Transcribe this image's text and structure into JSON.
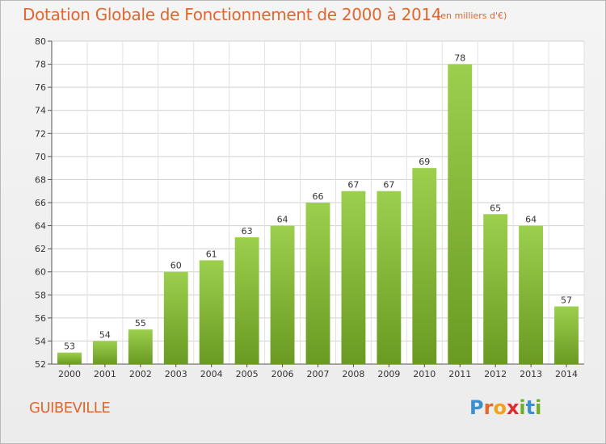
{
  "title": "Dotation Globale de Fonctionnement de 2000 à 2014",
  "subtitle": "(en milliers d'€)",
  "commune": "GUIBEVILLE",
  "logo": {
    "letters": [
      "P",
      "r",
      "o",
      "x",
      "i",
      "t",
      "i"
    ],
    "colors": [
      "#3a8fd0",
      "#e0672d",
      "#f2a11d",
      "#d9302f",
      "#6fae2d",
      "#3a8fd0",
      "#6fae2d"
    ]
  },
  "colors": {
    "accent": "#e0672d",
    "bar_light": "#9ccf4e",
    "bar_dark": "#6a9a22",
    "grid": "#d0d0d0"
  },
  "chart_data": {
    "type": "bar",
    "categories": [
      "2000",
      "2001",
      "2002",
      "2003",
      "2004",
      "2005",
      "2006",
      "2007",
      "2008",
      "2009",
      "2010",
      "2011",
      "2012",
      "2013",
      "2014"
    ],
    "values": [
      53,
      54,
      55,
      60,
      61,
      63,
      64,
      66,
      67,
      67,
      69,
      78,
      65,
      64,
      57
    ],
    "ylim": [
      52,
      80
    ],
    "yticks": [
      52,
      54,
      56,
      58,
      60,
      62,
      64,
      66,
      68,
      70,
      72,
      74,
      76,
      78,
      80
    ],
    "grid": true
  }
}
